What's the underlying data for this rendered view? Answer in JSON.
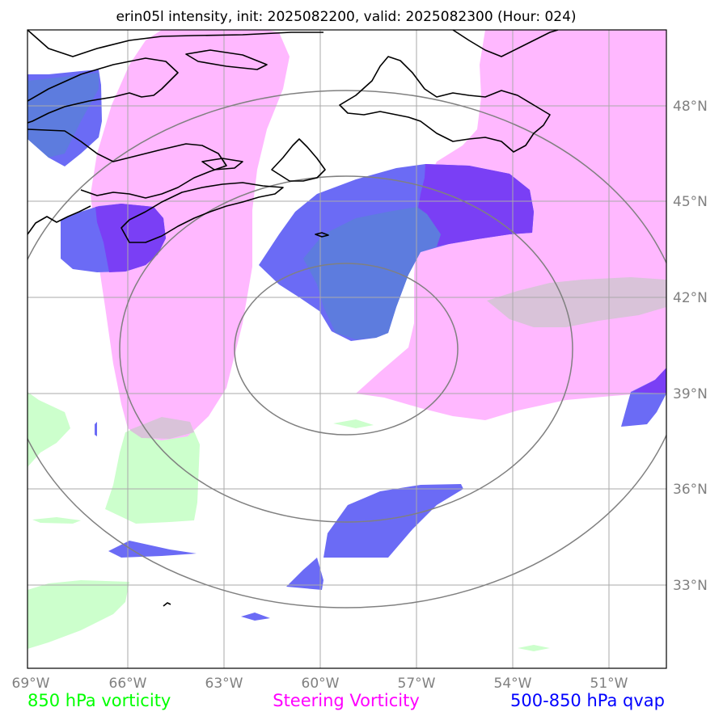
{
  "title": "erin05l intensity, init: 2025082200, valid: 2025082300 (Hour: 024)",
  "longitude_labels": [
    "69°W",
    "66°W",
    "63°W",
    "60°W",
    "57°W",
    "54°W",
    "51°W"
  ],
  "latitude_labels": [
    "48°N",
    "45°N",
    "42°N",
    "39°N",
    "36°N",
    "33°N"
  ],
  "legend": [
    {
      "label": "850 hPa vorticity",
      "color": "#00ff00"
    },
    {
      "label": "Steering Vorticity",
      "color": "#ff00ff"
    },
    {
      "label": "500-850 hPa qvap",
      "color": "#0000ff"
    }
  ],
  "colors": {
    "vorticity_850": "#ccffcc",
    "steering_vorticity": "#ffb8ff",
    "qvap": "#6b6bf5",
    "qvap_dense": "#7a3ff5",
    "range_rings": "#808080",
    "gridlines": "#aaaaaa",
    "coastline": "#000000"
  }
}
